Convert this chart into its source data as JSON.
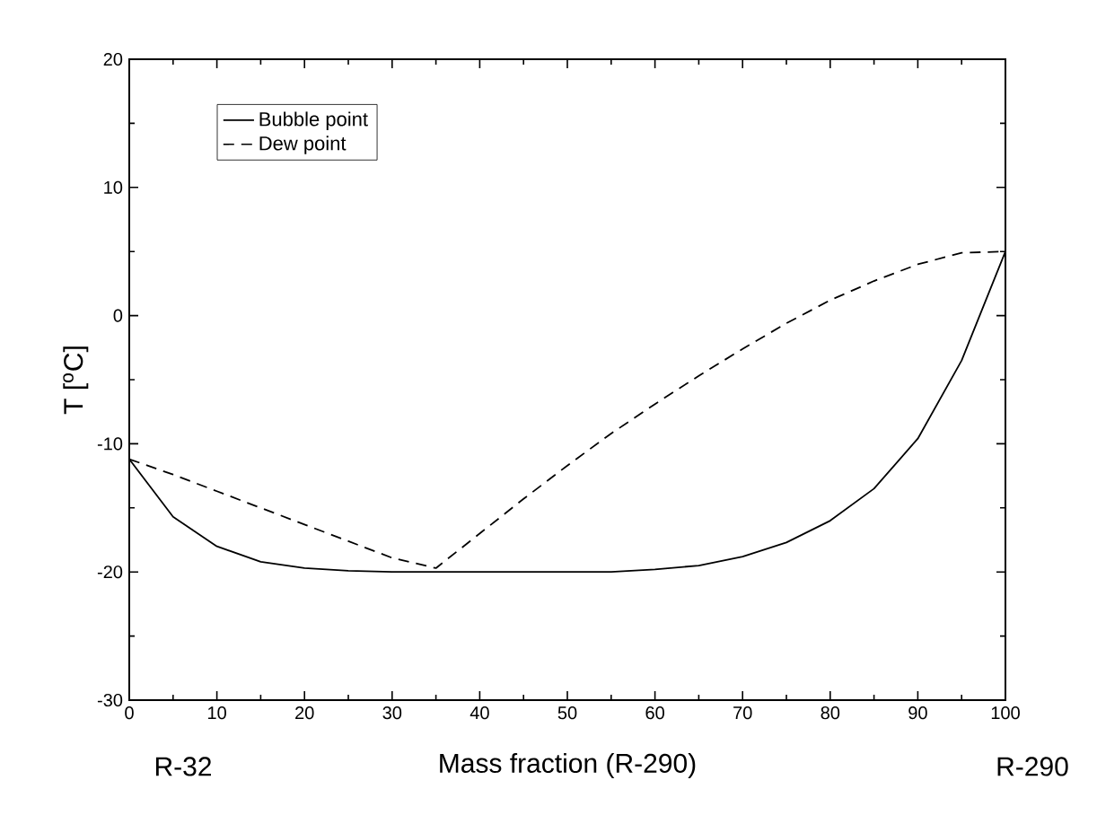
{
  "chart_data": {
    "type": "line",
    "xlabel": "Mass fraction (R-290)",
    "ylabel": "T [$^{o}$C]",
    "x": [
      0,
      5,
      10,
      15,
      20,
      25,
      30,
      35,
      40,
      45,
      50,
      55,
      60,
      65,
      70,
      75,
      80,
      85,
      90,
      95,
      100
    ],
    "series": [
      {
        "name": "Bubble point",
        "color": "#000000",
        "line_style": "solid",
        "values": [
          -11.2,
          -15.7,
          -18,
          -19.2,
          -19.7,
          -19.9,
          -20,
          -20,
          -20,
          -20,
          -20,
          -20,
          -19.8,
          -19.5,
          -18.8,
          -17.7,
          -16,
          -13.5,
          -9.6,
          -3.5,
          5
        ]
      },
      {
        "name": "Dew point",
        "color": "#000000",
        "line_style": "dashed",
        "values": [
          -11.2,
          -12.4,
          -13.7,
          -15,
          -16.3,
          -17.6,
          -18.9,
          -19.7,
          -17,
          -14.3,
          -11.7,
          -9.2,
          -6.9,
          -4.7,
          -2.6,
          -0.6,
          1.2,
          2.7,
          4,
          4.9,
          5
        ]
      }
    ],
    "xlim": [
      0,
      100
    ],
    "ylim": [
      -30,
      20
    ],
    "xticks": [
      0,
      10,
      20,
      30,
      40,
      50,
      60,
      70,
      80,
      90,
      100
    ],
    "yticks": [
      -30,
      -20,
      -10,
      0,
      10,
      20
    ],
    "legend": "top left",
    "grid": false,
    "marker": "none",
    "annotations": [
      "R-32",
      "R-290"
    ]
  }
}
